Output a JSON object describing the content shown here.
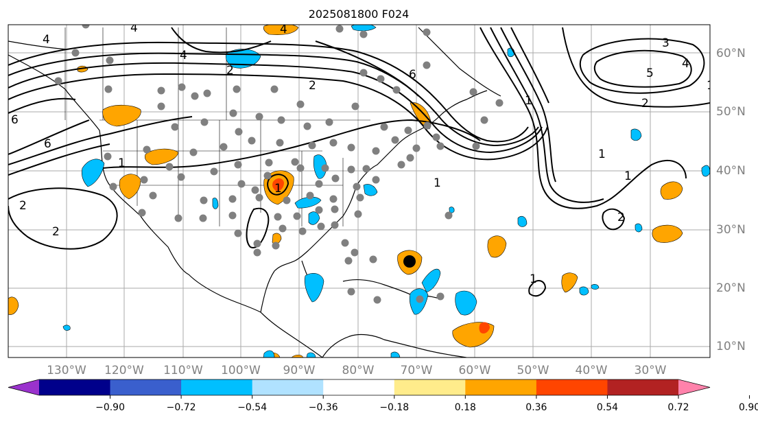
{
  "title": "2025081800 F024",
  "map": {
    "lon_labels": [
      "130°W",
      "120°W",
      "110°W",
      "100°W",
      "90°W",
      "80°W",
      "70°W",
      "60°W",
      "50°W",
      "40°W",
      "30°W"
    ],
    "lat_labels": [
      "60°N",
      "50°N",
      "40°N",
      "30°N",
      "20°N",
      "10°N"
    ],
    "contour_labels": [
      "4",
      "4",
      "4",
      "4",
      "6",
      "6",
      "6",
      "2",
      "2",
      "2",
      "2",
      "1",
      "1",
      "1",
      "1",
      "1",
      "3",
      "4",
      "5",
      "2",
      "2",
      "1",
      "1",
      "1"
    ]
  },
  "colorbar": {
    "ticks": [
      "−0.90",
      "−0.72",
      "−0.54",
      "−0.36",
      "−0.18",
      "0.18",
      "0.36",
      "0.54",
      "0.72",
      "0.90"
    ],
    "colors": [
      "#9a32cd",
      "#00008b",
      "#3a5fcd",
      "#00bfff",
      "#b0e2ff",
      "#ffffff",
      "#ffec8b",
      "#ffa500",
      "#ff4500",
      "#b22222",
      "#ff82ab"
    ]
  },
  "colors": {
    "station": "#808080",
    "storm": "#000000",
    "grid": "#aaaaaa"
  }
}
